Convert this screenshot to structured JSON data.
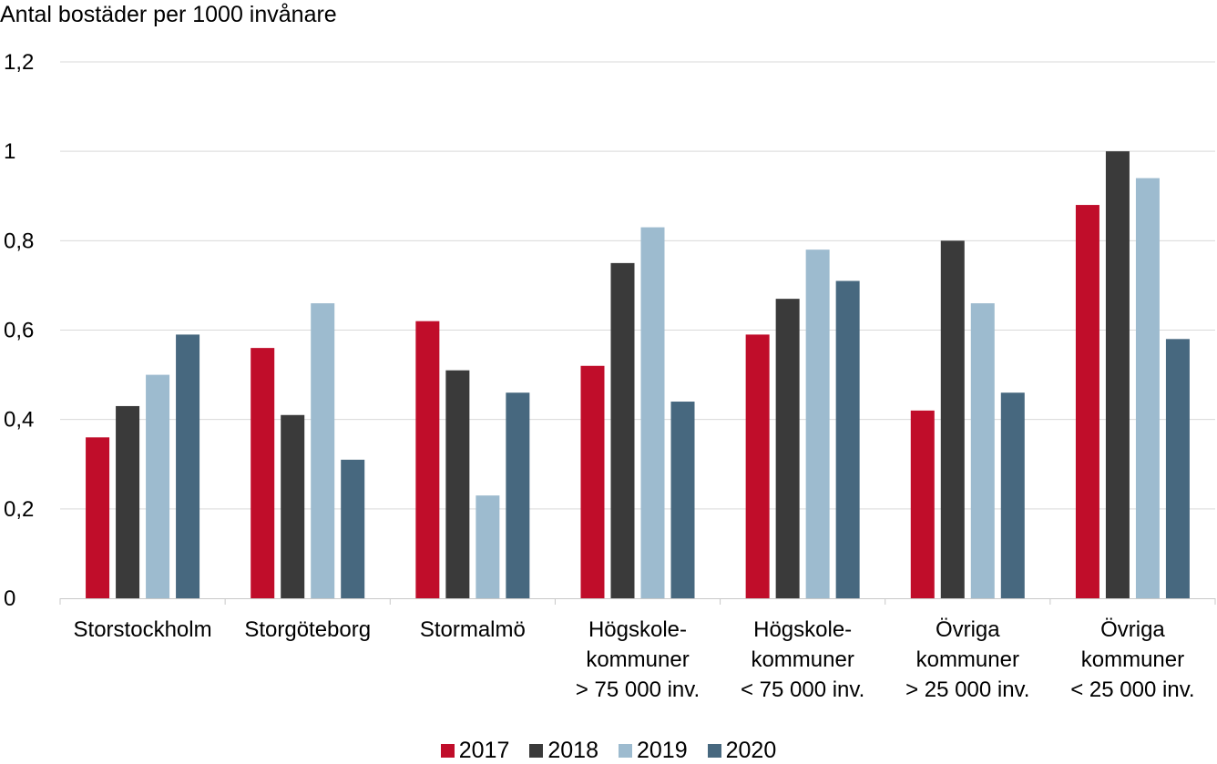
{
  "chart_data": {
    "type": "bar",
    "ylabel": "Antal bostäder per 1000 invånare",
    "ylim": [
      0,
      1.2
    ],
    "yticks": [
      "0",
      "0,2",
      "0,4",
      "0,6",
      "0,8",
      "1",
      "1,2"
    ],
    "grid": true,
    "legend_position": "bottom",
    "categories": [
      [
        "Storstockholm"
      ],
      [
        "Storgöteborg"
      ],
      [
        "Stormalmö"
      ],
      [
        "Högskole-",
        "kommuner",
        "> 75 000 inv."
      ],
      [
        "Högskole-",
        "kommuner",
        "< 75 000 inv."
      ],
      [
        "Övriga",
        "kommuner",
        "> 25 000 inv."
      ],
      [
        "Övriga",
        "kommuner",
        "< 25 000 inv."
      ]
    ],
    "series": [
      {
        "name": "2017",
        "color": "#c00d2a",
        "values": [
          0.36,
          0.56,
          0.62,
          0.52,
          0.59,
          0.42,
          0.88
        ]
      },
      {
        "name": "2018",
        "color": "#3a3a3a",
        "values": [
          0.43,
          0.41,
          0.51,
          0.75,
          0.67,
          0.8,
          1.0
        ]
      },
      {
        "name": "2019",
        "color": "#9dbbcf",
        "values": [
          0.5,
          0.66,
          0.23,
          0.83,
          0.78,
          0.66,
          0.94
        ]
      },
      {
        "name": "2020",
        "color": "#47687f",
        "values": [
          0.59,
          0.31,
          0.46,
          0.44,
          0.71,
          0.46,
          0.58
        ]
      }
    ]
  }
}
